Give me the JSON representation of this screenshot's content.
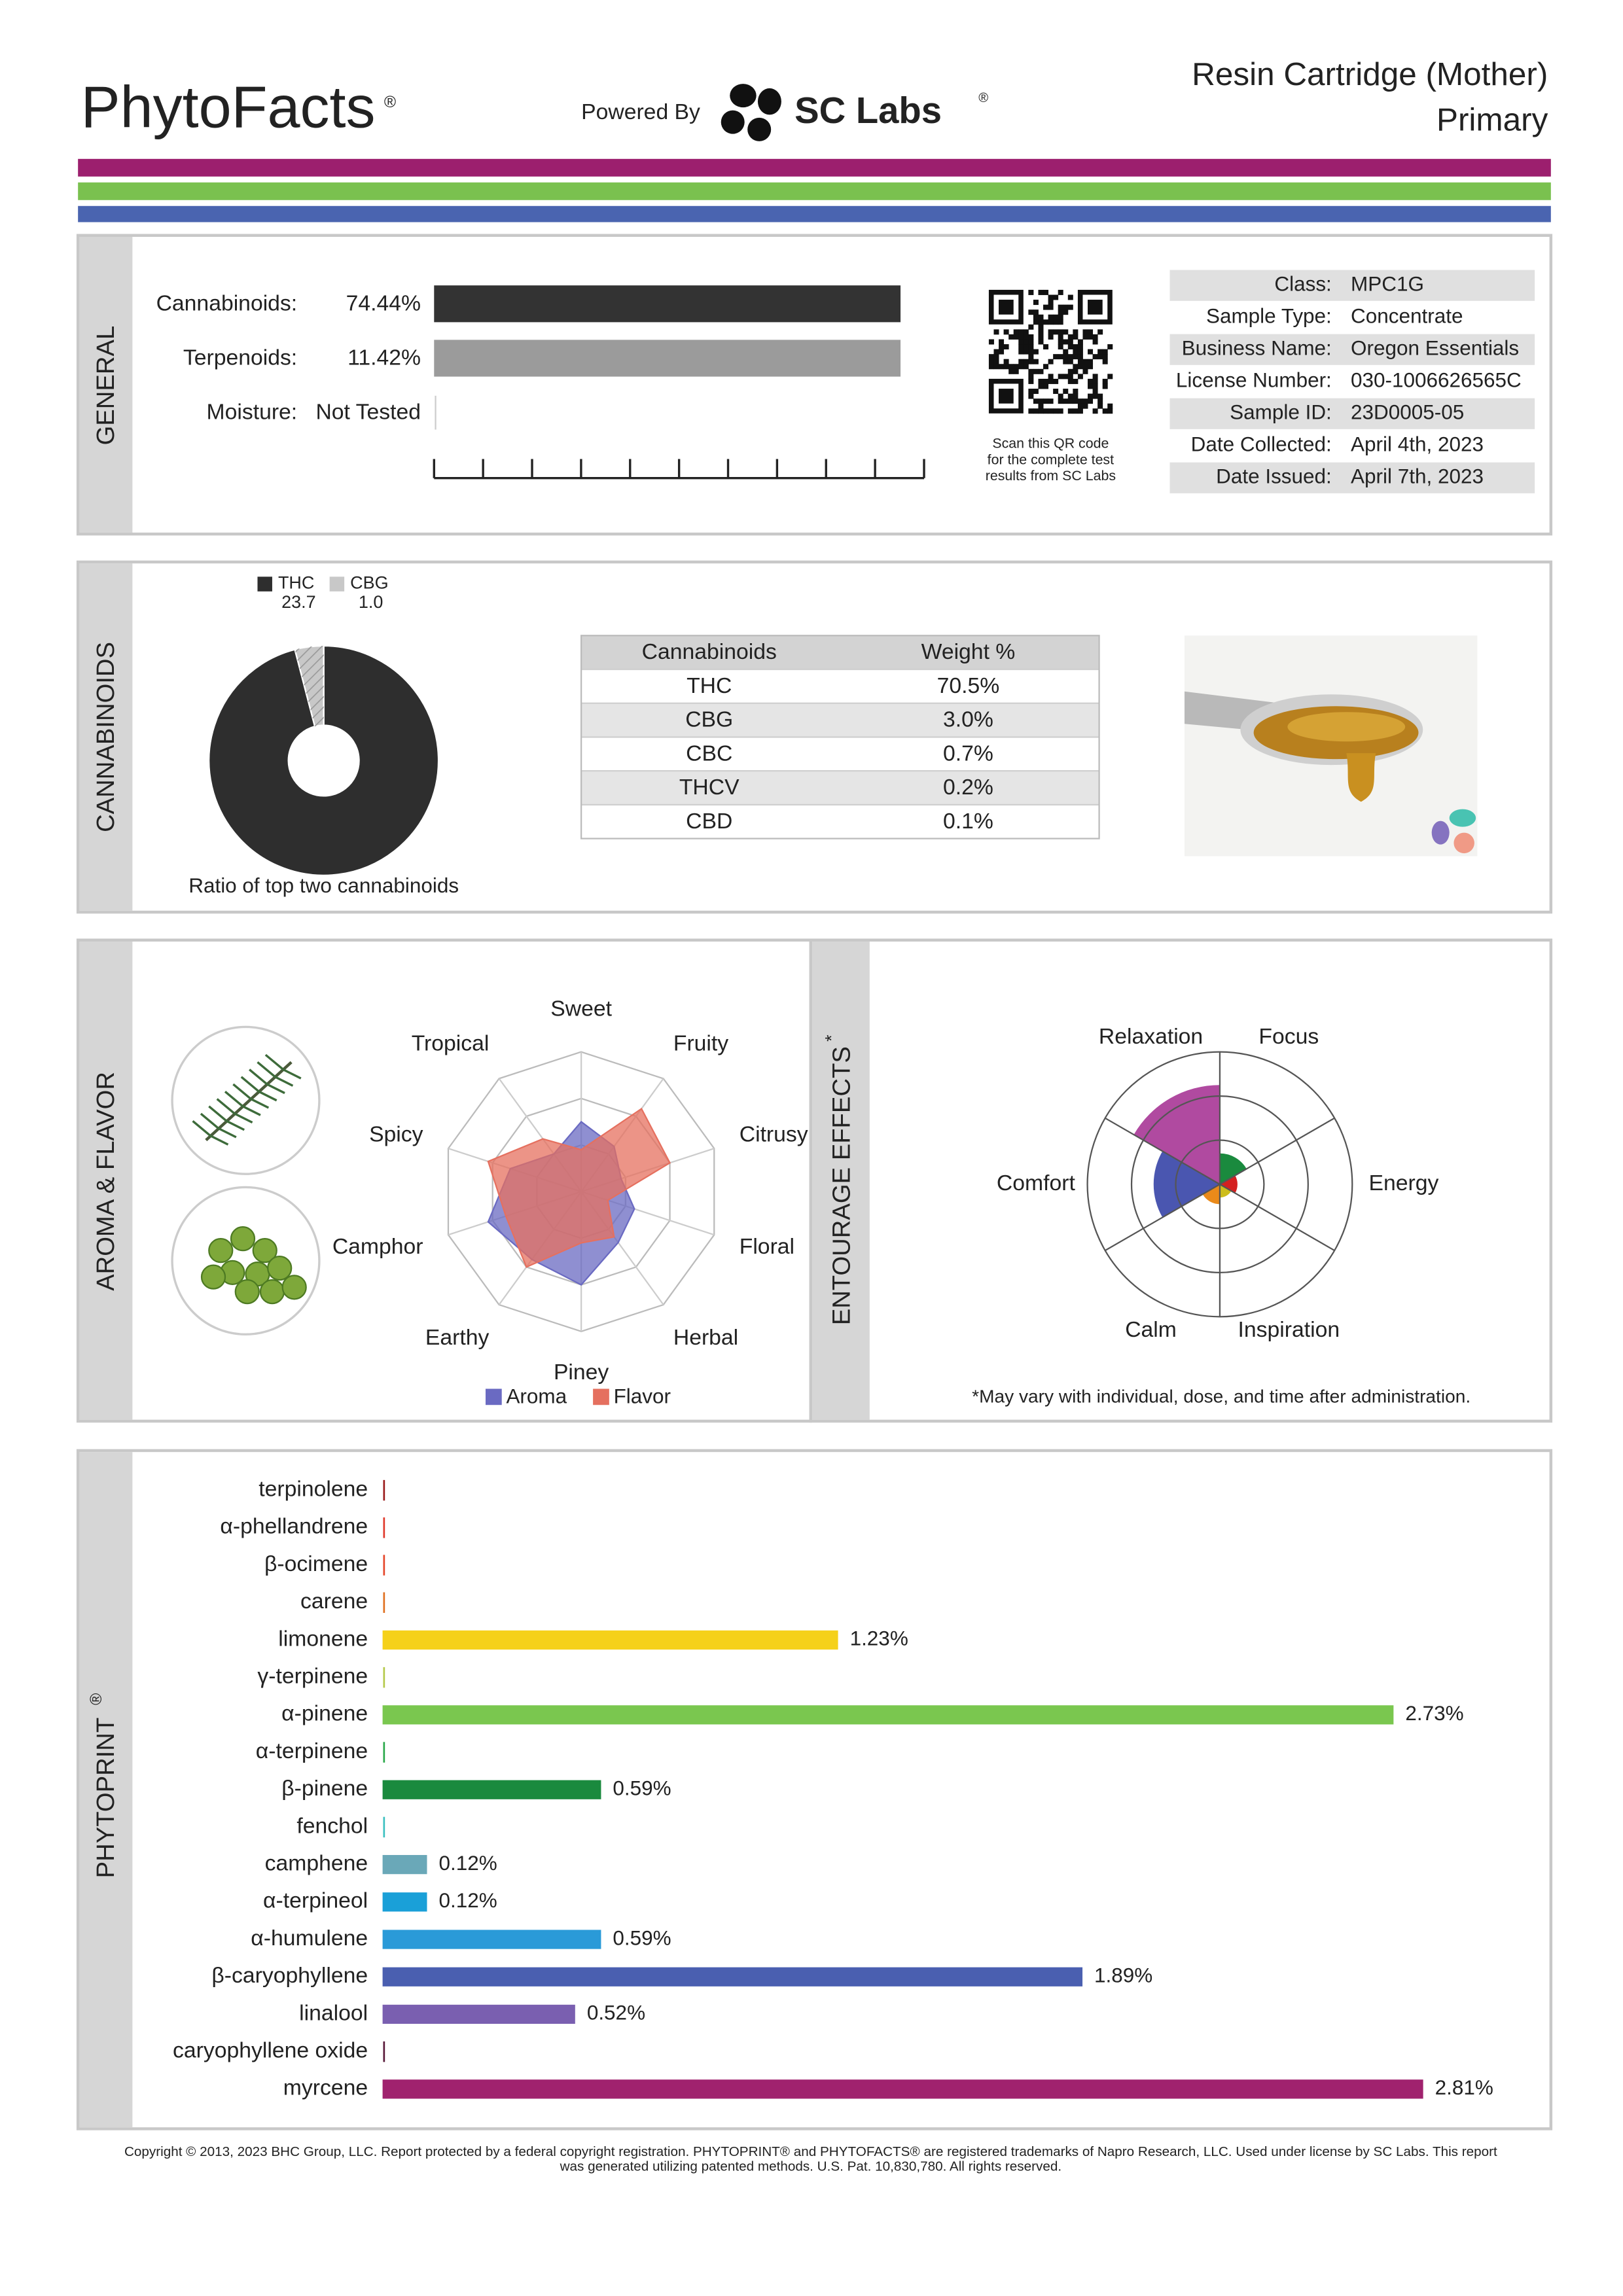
{
  "header": {
    "brand": "PhytoFacts",
    "brand_mark": "®",
    "powered_by": "Powered By",
    "lab": "SC Labs",
    "lab_mark": "®",
    "product": "Resin Cartridge (Mother)",
    "variant": "Primary"
  },
  "general": {
    "section": "GENERAL",
    "rows": [
      {
        "label": "Cannabinoids:",
        "value": "74.44%"
      },
      {
        "label": "Terpenoids:",
        "value": "11.42%"
      },
      {
        "label": "Moisture:",
        "value": "Not Tested"
      }
    ],
    "qr_caption": [
      "Scan this QR code",
      "for the complete test",
      "results from SC Labs"
    ],
    "info": [
      [
        "Class:",
        "MPC1G"
      ],
      [
        "Sample Type:",
        "Concentrate"
      ],
      [
        "Business Name:",
        "Oregon Essentials"
      ],
      [
        "License Number:",
        "030-1006626565C"
      ],
      [
        "Sample ID:",
        "23D0005-05"
      ],
      [
        "Date Collected:",
        "April 4th, 2023"
      ],
      [
        "Date Issued:",
        "April 7th, 2023"
      ]
    ]
  },
  "cannabinoids": {
    "section": "CANNABINOIDS",
    "table": {
      "header": [
        "Cannabinoids",
        "Weight %"
      ],
      "rows": [
        [
          "THC",
          "70.5%"
        ],
        [
          "CBG",
          "3.0%"
        ],
        [
          "CBC",
          "0.7%"
        ],
        [
          "THCV",
          "0.2%"
        ],
        [
          "CBD",
          "0.1%"
        ]
      ]
    }
  },
  "chart_data": [
    {
      "type": "pie",
      "title": "Ratio of top two cannabinoids",
      "categories": [
        "THC",
        "CBG"
      ],
      "values": [
        23.7,
        1.0
      ],
      "value_labels": [
        "23.7",
        "1.0"
      ],
      "colors": [
        "#2e2e2e",
        "#c8c8c8"
      ],
      "donut": true
    },
    {
      "type": "radar",
      "title": "AROMA & FLAVOR",
      "categories": [
        "Sweet",
        "Fruity",
        "Citrusy",
        "Floral",
        "Herbal",
        "Piney",
        "Earthy",
        "Camphor",
        "Spicy",
        "Tropical"
      ],
      "rlim": [
        0,
        3
      ],
      "rticks": [
        1,
        2,
        3
      ],
      "series": [
        {
          "name": "Aroma",
          "color": "#6a6ac2",
          "values": [
            1.5,
            1.2,
            0.9,
            1.2,
            1.35,
            2.0,
            1.8,
            2.1,
            1.6,
            1.0
          ]
        },
        {
          "name": "Flavor",
          "color": "#e5705f",
          "values": [
            0.9,
            2.2,
            2.0,
            0.6,
            1.2,
            1.1,
            2.0,
            1.7,
            2.1,
            1.4
          ]
        }
      ]
    },
    {
      "type": "polar-area",
      "title": "ENTOURAGE EFFECTS",
      "title_mark": "*",
      "categories": [
        "Focus",
        "Energy",
        "Inspiration",
        "Calm",
        "Comfort",
        "Relaxation"
      ],
      "values": [
        0.7,
        0.4,
        0.3,
        0.45,
        1.5,
        2.25
      ],
      "colors": [
        "#1a8a3e",
        "#d42020",
        "#cdbd1c",
        "#ea8a1a",
        "#4a56b0",
        "#b04aa0"
      ],
      "rlim": [
        0,
        3
      ],
      "rticks": [
        1,
        2,
        3
      ],
      "note": "*May vary with individual, dose, and time after administration."
    },
    {
      "type": "bar",
      "orientation": "horizontal",
      "title": "PHYTOPRINT",
      "title_mark": "®",
      "categories": [
        "terpinolene",
        "α-phellandrene",
        "β-ocimene",
        "carene",
        "limonene",
        "γ-terpinene",
        "α-pinene",
        "α-terpinene",
        "β-pinene",
        "fenchol",
        "camphene",
        "α-terpineol",
        "α-humulene",
        "β-caryophyllene",
        "linalool",
        "caryophyllene oxide",
        "myrcene"
      ],
      "values": [
        null,
        null,
        null,
        null,
        1.23,
        null,
        2.73,
        null,
        0.59,
        null,
        0.12,
        0.12,
        0.59,
        1.89,
        0.52,
        null,
        2.81
      ],
      "value_labels": [
        null,
        null,
        null,
        null,
        "1.23%",
        null,
        "2.73%",
        null,
        "0.59%",
        null,
        "0.12%",
        "0.12%",
        "0.59%",
        "1.89%",
        "0.52%",
        null,
        "2.81%"
      ],
      "colors": [
        "#9b1c1c",
        "#e0392b",
        "#e5472a",
        "#e07020",
        "#f5d11a",
        "#b5c94a",
        "#7ac74f",
        "#2aa84a",
        "#1a8a3e",
        "#3cc0c0",
        "#6aa8b8",
        "#1aa0d8",
        "#2a9ad8",
        "#4a5fb0",
        "#7a5fb0",
        "#5a1a3a",
        "#a0226e"
      ],
      "xlim": [
        0,
        3
      ]
    }
  ],
  "footer": [
    "Copyright © 2013, 2023 BHC Group, LLC. Report protected by a federal copyright registration. PHYTOPRINT® and PHYTOFACTS® are registered trademarks of Napro Research, LLC. Used under license by SC Labs. This report",
    "was generated utilizing patented methods. U.S. Pat. 10,830,780. All rights reserved."
  ]
}
